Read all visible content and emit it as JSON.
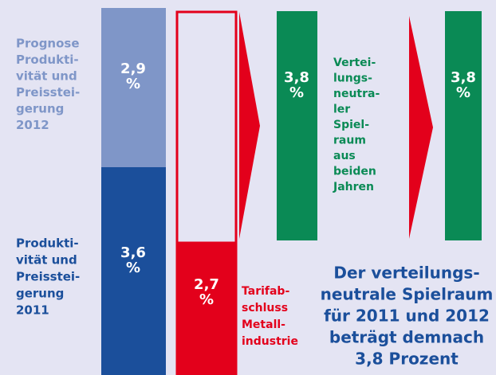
{
  "left_labels": {
    "prognosis": [
      "Prognose",
      "Produkti-",
      "vität und",
      "Preisstei-",
      "gerung",
      "2012"
    ],
    "actual": [
      "Produkti-",
      "vität und",
      "Preisstei-",
      "gerung",
      "2011"
    ]
  },
  "bars": {
    "prognosis_value": [
      "2,9",
      "%"
    ],
    "actual_value": [
      "3,6",
      "%"
    ],
    "tariff_value": [
      "2,7",
      "%"
    ],
    "neutral_value": [
      "3,8",
      "%"
    ],
    "result_value": [
      "3,8",
      "%"
    ]
  },
  "tariff_label": [
    "Tarifab-",
    "schluss",
    "Metall-",
    "industrie"
  ],
  "neutral_label": [
    "Vertei-",
    "lungs-",
    "neutra-",
    "ler",
    "Spiel-",
    "raum",
    "aus",
    "beiden",
    "Jahren"
  ],
  "conclusion": [
    "Der verteilungs-",
    "neutrale Spielraum",
    "für 2011 und 2012",
    "beträgt demnach",
    "3,8 Prozent"
  ]
}
